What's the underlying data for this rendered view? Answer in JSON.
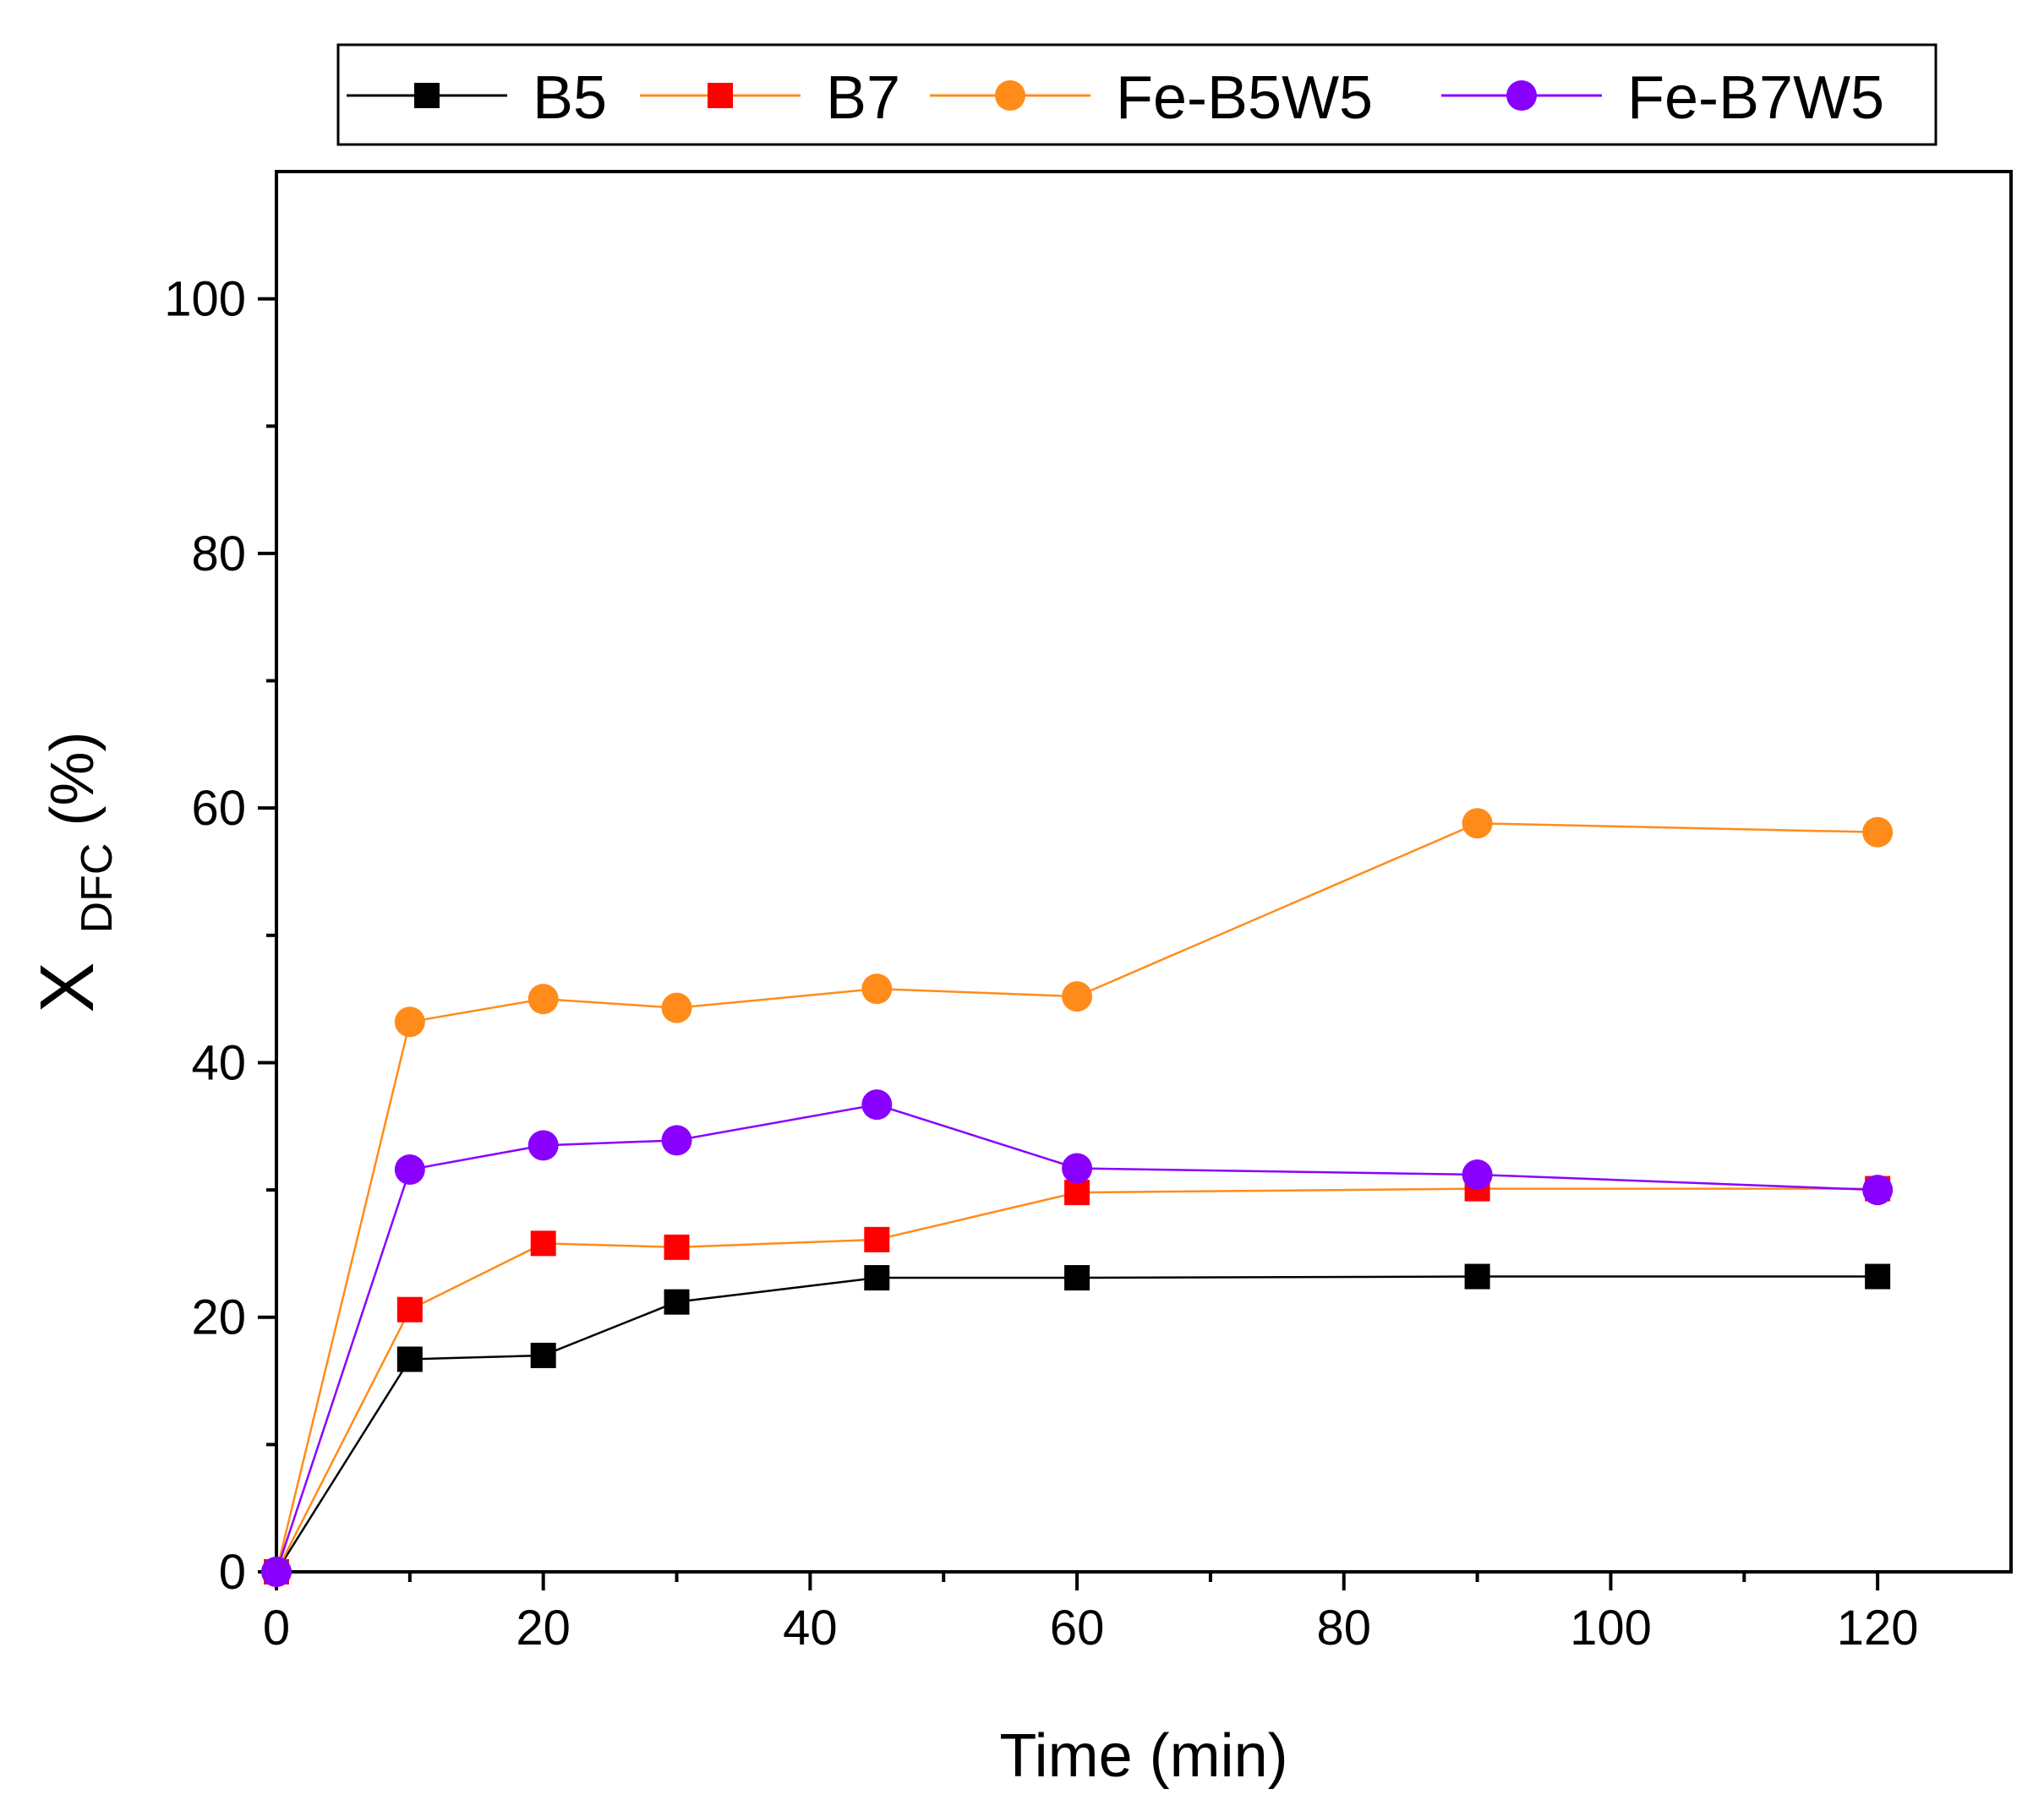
{
  "chart_data": {
    "type": "line",
    "title": "",
    "xlabel": "Time (min)",
    "ylabel": {
      "main": "X",
      "subscript": "DFC",
      "suffix": "(%)"
    },
    "xlim": [
      0,
      130
    ],
    "ylim": [
      0,
      110
    ],
    "xticks": [
      0,
      20,
      40,
      60,
      80,
      100,
      120
    ],
    "yticks": [
      0,
      20,
      40,
      60,
      80,
      100
    ],
    "xtick_labels": [
      "0",
      "20",
      "40",
      "60",
      "80",
      "100",
      "120"
    ],
    "ytick_labels": [
      "0",
      "20",
      "40",
      "60",
      "80",
      "100"
    ],
    "x": [
      0,
      10,
      20,
      30,
      45,
      60,
      90,
      120
    ],
    "legend_position": "top",
    "series": [
      {
        "name": "B5",
        "marker": "square",
        "marker_color": "#000000",
        "line_color": "#000000",
        "values": [
          0,
          16.7,
          17.0,
          21.2,
          23.1,
          23.1,
          23.2,
          23.2
        ]
      },
      {
        "name": "B7",
        "marker": "square",
        "marker_color": "#ff0000",
        "line_color": "#ff8c1a",
        "values": [
          0,
          20.6,
          25.8,
          25.5,
          26.1,
          29.8,
          30.1,
          30.1
        ]
      },
      {
        "name": "Fe-B5W5",
        "marker": "circle",
        "marker_color": "#ff8c1a",
        "line_color": "#ff8c1a",
        "values": [
          0,
          43.2,
          45.0,
          44.3,
          45.8,
          45.2,
          58.8,
          58.1
        ]
      },
      {
        "name": "Fe-B7W5",
        "marker": "circle",
        "marker_color": "#8a00ff",
        "line_color": "#8a00ff",
        "values": [
          0,
          31.6,
          33.5,
          33.9,
          36.7,
          31.7,
          31.2,
          30.0
        ]
      }
    ]
  }
}
